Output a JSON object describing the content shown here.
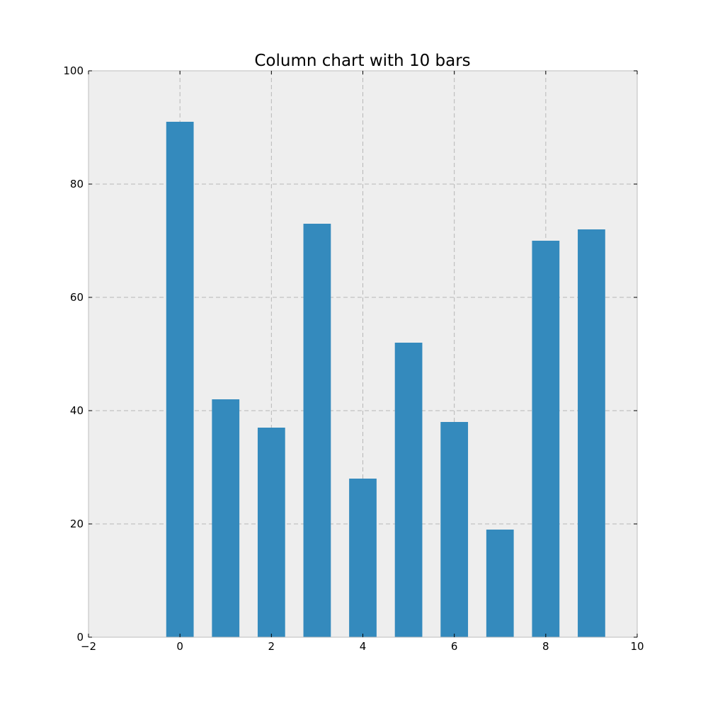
{
  "chart_data": {
    "type": "bar",
    "title": "Column chart with 10 bars",
    "xlabel": "",
    "ylabel": "",
    "x": [
      0,
      1,
      2,
      3,
      4,
      5,
      6,
      7,
      8,
      9
    ],
    "values": [
      91,
      42,
      37,
      73,
      28,
      52,
      38,
      19,
      70,
      72
    ],
    "bar_width": 0.6,
    "xlim": [
      -2,
      10
    ],
    "ylim": [
      0,
      100
    ],
    "xticks": [
      -2,
      0,
      2,
      4,
      6,
      8,
      10
    ],
    "xtick_labels": [
      "−2",
      "0",
      "2",
      "4",
      "6",
      "8",
      "10"
    ],
    "yticks": [
      0,
      20,
      40,
      60,
      80,
      100
    ],
    "ytick_labels": [
      "0",
      "20",
      "40",
      "60",
      "80",
      "100"
    ],
    "grid": true,
    "colors": {
      "bar": "#348abd",
      "plot_background": "#eeeeee",
      "grid": "#b7b7b7",
      "axes_edge": "#bcbcbc"
    }
  }
}
